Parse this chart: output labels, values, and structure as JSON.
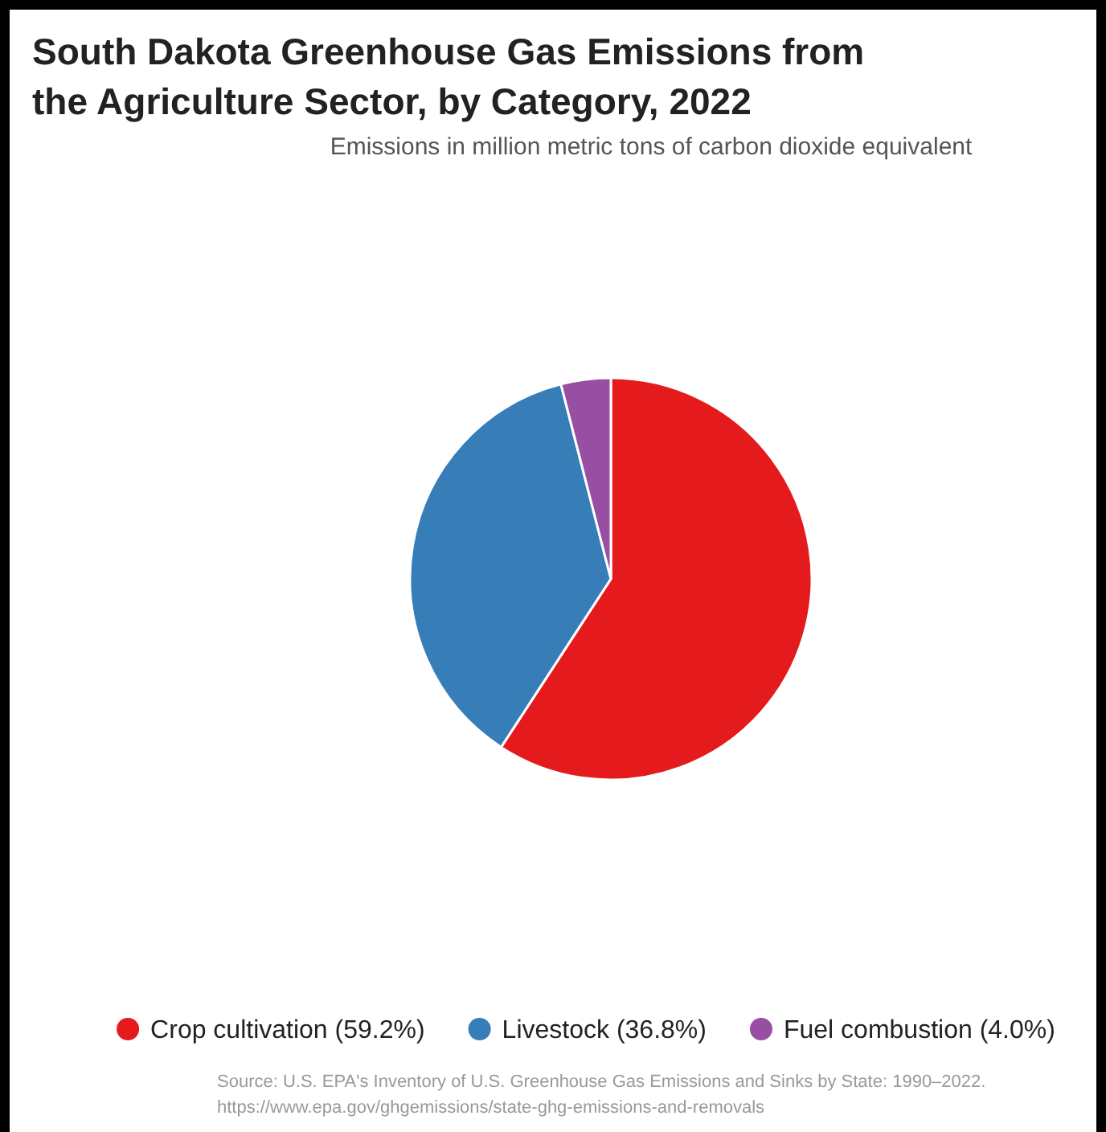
{
  "chart_data": {
    "type": "pie",
    "title": "South Dakota Greenhouse Gas Emissions from the Agriculture Sector, by Category, 2022",
    "subtitle": "Emissions in million metric tons of carbon dioxide equivalent",
    "categories": [
      "Crop cultivation (59.2%)",
      "Livestock (36.8%)",
      "Fuel combustion (4.0%)"
    ],
    "values": [
      59.2,
      36.8,
      4.0
    ],
    "colors": [
      "#e41a1c",
      "#377eb8",
      "#984ea3"
    ],
    "legend": "bottom",
    "annotations": [
      "Source: U.S. EPA's Inventory of U.S. Greenhouse Gas Emissions and Sinks by State: 1990–2022.",
      "https://www.epa.gov/ghgemissions/state-ghg-emissions-and-removals"
    ]
  }
}
